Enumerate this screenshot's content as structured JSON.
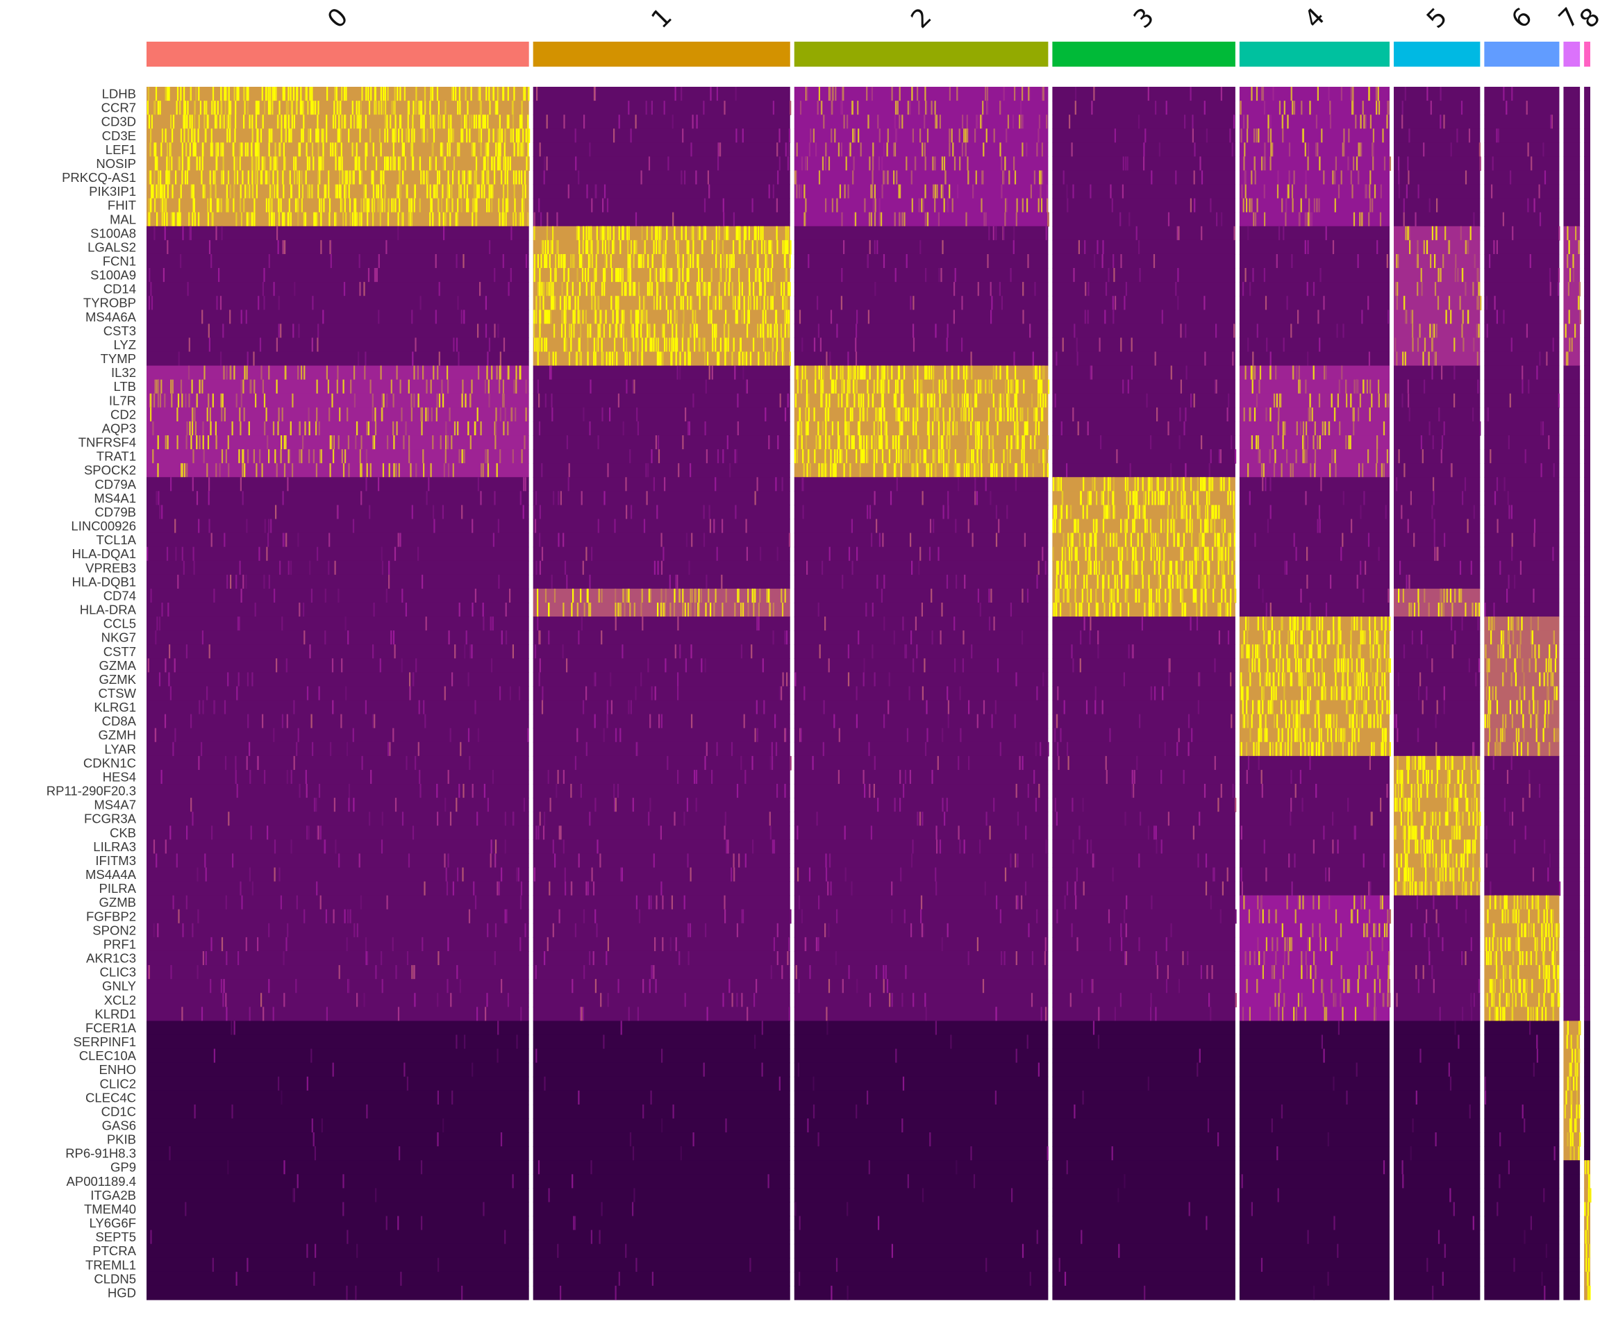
{
  "chart_data": {
    "type": "heatmap",
    "title": "",
    "xlabel": "",
    "ylabel": "",
    "legend": "none",
    "clusters": [
      {
        "id": "0",
        "color": "#F8766D",
        "cells": 372
      },
      {
        "id": "1",
        "color": "#D39200",
        "cells": 250
      },
      {
        "id": "2",
        "color": "#93AA00",
        "cells": 247
      },
      {
        "id": "3",
        "color": "#00BA38",
        "cells": 178
      },
      {
        "id": "4",
        "color": "#00C19F",
        "cells": 146
      },
      {
        "id": "5",
        "color": "#00B9E3",
        "cells": 84
      },
      {
        "id": "6",
        "color": "#619CFF",
        "cells": 73
      },
      {
        "id": "7",
        "color": "#DB72FB",
        "cells": 16
      },
      {
        "id": "8",
        "color": "#FF61C3",
        "cells": 6
      }
    ],
    "genes": [
      {
        "name": "LDHB",
        "marker_of": "0"
      },
      {
        "name": "CCR7",
        "marker_of": "0"
      },
      {
        "name": "CD3D",
        "marker_of": "0"
      },
      {
        "name": "CD3E",
        "marker_of": "0"
      },
      {
        "name": "LEF1",
        "marker_of": "0"
      },
      {
        "name": "NOSIP",
        "marker_of": "0"
      },
      {
        "name": "PRKCQ-AS1",
        "marker_of": "0"
      },
      {
        "name": "PIK3IP1",
        "marker_of": "0"
      },
      {
        "name": "FHIT",
        "marker_of": "0"
      },
      {
        "name": "MAL",
        "marker_of": "0"
      },
      {
        "name": "S100A8",
        "marker_of": "1"
      },
      {
        "name": "LGALS2",
        "marker_of": "1"
      },
      {
        "name": "FCN1",
        "marker_of": "1"
      },
      {
        "name": "S100A9",
        "marker_of": "1"
      },
      {
        "name": "CD14",
        "marker_of": "1"
      },
      {
        "name": "TYROBP",
        "marker_of": "1"
      },
      {
        "name": "MS4A6A",
        "marker_of": "1"
      },
      {
        "name": "CST3",
        "marker_of": "1"
      },
      {
        "name": "LYZ",
        "marker_of": "1"
      },
      {
        "name": "TYMP",
        "marker_of": "1"
      },
      {
        "name": "IL32",
        "marker_of": "2"
      },
      {
        "name": "LTB",
        "marker_of": "2"
      },
      {
        "name": "IL7R",
        "marker_of": "2"
      },
      {
        "name": "CD2",
        "marker_of": "2"
      },
      {
        "name": "AQP3",
        "marker_of": "2"
      },
      {
        "name": "TNFRSF4",
        "marker_of": "2"
      },
      {
        "name": "TRAT1",
        "marker_of": "2"
      },
      {
        "name": "SPOCK2",
        "marker_of": "2"
      },
      {
        "name": "CD79A",
        "marker_of": "3"
      },
      {
        "name": "MS4A1",
        "marker_of": "3"
      },
      {
        "name": "CD79B",
        "marker_of": "3"
      },
      {
        "name": "LINC00926",
        "marker_of": "3"
      },
      {
        "name": "TCL1A",
        "marker_of": "3"
      },
      {
        "name": "HLA-DQA1",
        "marker_of": "3"
      },
      {
        "name": "VPREB3",
        "marker_of": "3"
      },
      {
        "name": "HLA-DQB1",
        "marker_of": "3"
      },
      {
        "name": "CD74",
        "marker_of": "3"
      },
      {
        "name": "HLA-DRA",
        "marker_of": "3"
      },
      {
        "name": "CCL5",
        "marker_of": "4"
      },
      {
        "name": "NKG7",
        "marker_of": "4"
      },
      {
        "name": "CST7",
        "marker_of": "4"
      },
      {
        "name": "GZMA",
        "marker_of": "4"
      },
      {
        "name": "GZMK",
        "marker_of": "4"
      },
      {
        "name": "CTSW",
        "marker_of": "4"
      },
      {
        "name": "KLRG1",
        "marker_of": "4"
      },
      {
        "name": "CD8A",
        "marker_of": "4"
      },
      {
        "name": "GZMH",
        "marker_of": "4"
      },
      {
        "name": "LYAR",
        "marker_of": "4"
      },
      {
        "name": "CDKN1C",
        "marker_of": "5"
      },
      {
        "name": "HES4",
        "marker_of": "5"
      },
      {
        "name": "RP11-290F20.3",
        "marker_of": "5"
      },
      {
        "name": "MS4A7",
        "marker_of": "5"
      },
      {
        "name": "FCGR3A",
        "marker_of": "5"
      },
      {
        "name": "CKB",
        "marker_of": "5"
      },
      {
        "name": "LILRA3",
        "marker_of": "5"
      },
      {
        "name": "IFITM3",
        "marker_of": "5"
      },
      {
        "name": "MS4A4A",
        "marker_of": "5"
      },
      {
        "name": "PILRA",
        "marker_of": "5"
      },
      {
        "name": "GZMB",
        "marker_of": "6"
      },
      {
        "name": "FGFBP2",
        "marker_of": "6"
      },
      {
        "name": "SPON2",
        "marker_of": "6"
      },
      {
        "name": "PRF1",
        "marker_of": "6"
      },
      {
        "name": "AKR1C3",
        "marker_of": "6"
      },
      {
        "name": "CLIC3",
        "marker_of": "6"
      },
      {
        "name": "GNLY",
        "marker_of": "6"
      },
      {
        "name": "XCL2",
        "marker_of": "6"
      },
      {
        "name": "KLRD1",
        "marker_of": "6"
      },
      {
        "name": "FCER1A",
        "marker_of": "7"
      },
      {
        "name": "SERPINF1",
        "marker_of": "7"
      },
      {
        "name": "CLEC10A",
        "marker_of": "7"
      },
      {
        "name": "ENHO",
        "marker_of": "7"
      },
      {
        "name": "CLIC2",
        "marker_of": "7"
      },
      {
        "name": "CLEC4C",
        "marker_of": "7"
      },
      {
        "name": "CD1C",
        "marker_of": "7"
      },
      {
        "name": "GAS6",
        "marker_of": "7"
      },
      {
        "name": "PKIB",
        "marker_of": "7"
      },
      {
        "name": "RP6-91H8.3",
        "marker_of": "7"
      },
      {
        "name": "GP9",
        "marker_of": "8"
      },
      {
        "name": "AP001189.4",
        "marker_of": "8"
      },
      {
        "name": "ITGA2B",
        "marker_of": "8"
      },
      {
        "name": "TMEM40",
        "marker_of": "8"
      },
      {
        "name": "LY6G6F",
        "marker_of": "8"
      },
      {
        "name": "SEPT5",
        "marker_of": "8"
      },
      {
        "name": "PTCRA",
        "marker_of": "8"
      },
      {
        "name": "TREML1",
        "marker_of": "8"
      },
      {
        "name": "CLDN5",
        "marker_of": "8"
      },
      {
        "name": "HGD",
        "marker_of": "8"
      }
    ],
    "color_scale": {
      "low": "#330043",
      "mid": "#9a1a9a",
      "high": "#ffff00",
      "palette": "PurpleAndYellow"
    },
    "expression_scale": {
      "low": -2.5,
      "high": 2.5
    }
  }
}
